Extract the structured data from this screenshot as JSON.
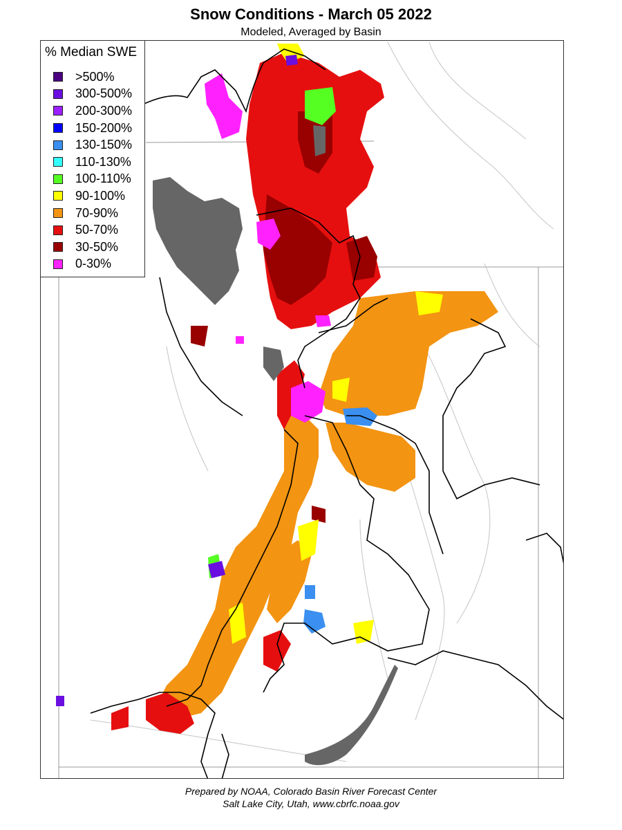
{
  "map": {
    "title": "Snow Conditions - March 05 2022",
    "subtitle": "Modeled, Averaged by Basin"
  },
  "legend": {
    "title": "% Median SWE",
    "items": [
      {
        "label": ">500%",
        "color": "#4b0082"
      },
      {
        "label": "300-500%",
        "color": "#6a0fe0"
      },
      {
        "label": "200-300%",
        "color": "#9b1fff"
      },
      {
        "label": "150-200%",
        "color": "#0000ff"
      },
      {
        "label": "130-150%",
        "color": "#3a8ff0"
      },
      {
        "label": "110-130%",
        "color": "#33ffff"
      },
      {
        "label": "100-110%",
        "color": "#55ff22"
      },
      {
        "label": "90-100%",
        "color": "#ffff00"
      },
      {
        "label": "70-90%",
        "color": "#f39412"
      },
      {
        "label": "50-70%",
        "color": "#e60f0f"
      },
      {
        "label": "30-50%",
        "color": "#990000"
      },
      {
        "label": "0-30%",
        "color": "#ff22ff"
      }
    ]
  },
  "colors": {
    "lake": "#666666",
    "river": "#bbbbbb",
    "basin_boundary": "#000000",
    "state_line": "#888888"
  },
  "footer": {
    "line1": "Prepared by NOAA, Colorado Basin River Forecast Center",
    "line2": "Salt Lake City, Utah, www.cbrfc.noaa.gov"
  }
}
